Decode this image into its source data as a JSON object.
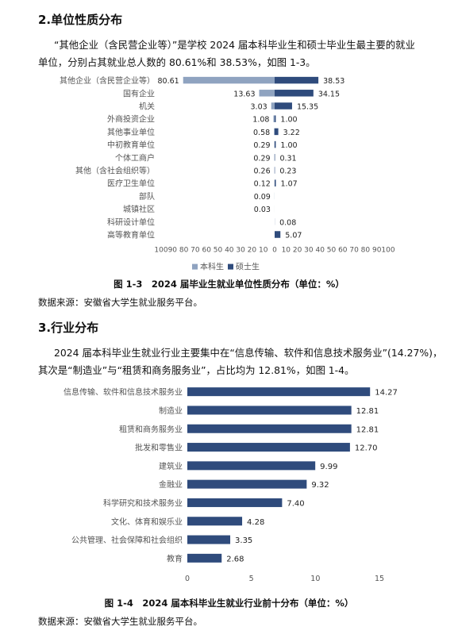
{
  "section2": {
    "heading": "2.单位性质分布",
    "para_line1": "“其他企业（含民营企业等）”是学校 2024 届本科毕业生和硕士毕业生最主要的就业",
    "para_line2": "单位，分别占其就业总人数的 80.61%和 38.53%，如图 1-3。"
  },
  "chart1": {
    "caption": "图 1-3　2024 届毕业生就业单位性质分布（单位：%）",
    "source": "数据来源：安徽省大学生就业服务平台。"
  },
  "section3": {
    "heading": "3.行业分布",
    "para_line1": "2024 届本科毕业生就业行业主要集中在“信息传输、软件和信息技术服务业”(14.27%)，",
    "para_line2": "其次是“制造业”与“租赁和商务服务业”，占比均为 12.81%，如图 1-4。"
  },
  "chart2": {
    "caption": "图 1-4　2024 届本科毕业生就业行业前十分布（单位：%）",
    "source": "数据来源：安徽省大学生就业服务平台。"
  },
  "chart_data": [
    {
      "type": "bar",
      "orientation": "horizontal-butterfly",
      "categories": [
        "其他企业（含民营企业等）",
        "国有企业",
        "机关",
        "外商投资企业",
        "其他事业单位",
        "中初教育单位",
        "个体工商户",
        "其他（含社会组织等）",
        "医疗卫生单位",
        "部队",
        "城镇社区",
        "科研设计单位",
        "高等教育单位"
      ],
      "series": [
        {
          "name": "本科生",
          "color": "#8fa3c0",
          "values": [
            80.61,
            13.63,
            3.03,
            1.08,
            0.58,
            0.29,
            0.29,
            0.26,
            0.12,
            0.09,
            0.03,
            null,
            null
          ]
        },
        {
          "name": "硕士生",
          "color": "#2f4b7c",
          "values": [
            38.53,
            34.15,
            15.35,
            1.0,
            3.22,
            1.0,
            0.31,
            0.23,
            1.07,
            null,
            null,
            0.08,
            5.07
          ]
        }
      ],
      "left_labels": [
        "80.61",
        "13.63",
        "3.03",
        "1.08",
        "0.58",
        "0.29",
        "0.29",
        "0.26",
        "0.12",
        "0.09",
        "0.03",
        "",
        ""
      ],
      "right_labels": [
        "38.53",
        "34.15",
        "15.35",
        "1.00",
        "3.22",
        "1.00",
        "0.31",
        "0.23",
        "1.07",
        "",
        "",
        "0.08",
        "5.07"
      ],
      "x_ticks": [
        "100",
        "90",
        "80",
        "70",
        "60",
        "50",
        "40",
        "30",
        "20",
        "10",
        "0",
        "10",
        "20",
        "30",
        "40",
        "50",
        "60",
        "70",
        "80",
        "90",
        "100"
      ],
      "xlim": [
        -100,
        100
      ],
      "legend_position": "bottom",
      "grid": false
    },
    {
      "type": "bar",
      "orientation": "horizontal",
      "categories": [
        "信息传输、软件和信息技术服务业",
        "制造业",
        "租赁和商务服务业",
        "批发和零售业",
        "建筑业",
        "金融业",
        "科学研究和技术服务业",
        "文化、体育和娱乐业",
        "公共管理、社会保障和社会组织",
        "教育"
      ],
      "values": [
        14.27,
        12.81,
        12.81,
        12.7,
        9.99,
        9.32,
        7.4,
        4.28,
        3.35,
        2.68
      ],
      "value_labels": [
        "14.27",
        "12.81",
        "12.81",
        "12.70",
        "9.99",
        "9.32",
        "7.40",
        "4.28",
        "3.35",
        "2.68"
      ],
      "x_ticks": [
        "0",
        "5",
        "10",
        "15"
      ],
      "xlim": [
        0,
        15
      ],
      "color": "#2f4b7c",
      "grid": false
    }
  ]
}
